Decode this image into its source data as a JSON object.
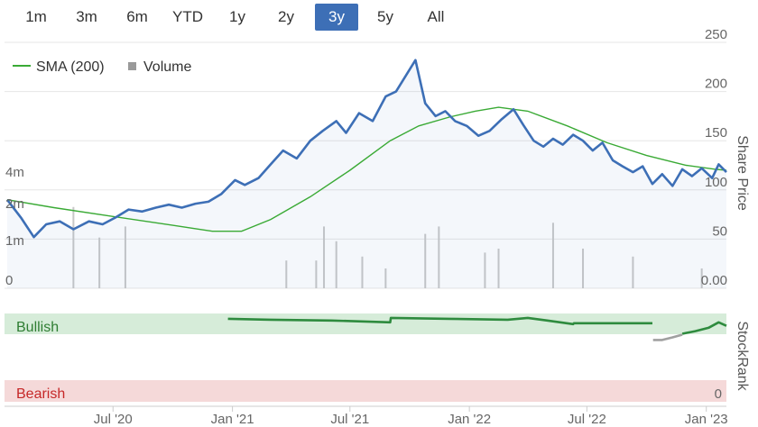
{
  "range_selector": {
    "buttons": [
      {
        "label": "1m"
      },
      {
        "label": "3m"
      },
      {
        "label": "6m"
      },
      {
        "label": "YTD"
      },
      {
        "label": "1y"
      },
      {
        "label": "2y"
      },
      {
        "label": "3y"
      },
      {
        "label": "5y"
      },
      {
        "label": "All"
      }
    ],
    "active_index": 6
  },
  "colors": {
    "price_line": "#3d6fb6",
    "sma_line": "#3aaa35",
    "volume_bar": "#c8c8c8",
    "bullish_band": "#d6ecd9",
    "bearish_band": "#f5d9d9",
    "stockrank_line": "#2e8b3e",
    "stockrank_gray": "#a0a0a0",
    "bullish_text": "#2e7d32",
    "bearish_text": "#c62828"
  },
  "chart_data": [
    {
      "type": "line",
      "x_ticks": [
        "Jul '20",
        "Jan '21",
        "Jul '21",
        "Jan '22",
        "Jul '22",
        "Jan '23"
      ],
      "y_right_ticks": [
        "250",
        "200",
        "150",
        "100",
        "50",
        "0.00"
      ],
      "y_right_label": "Share Price",
      "y_right_range": [
        0,
        250
      ],
      "y_left_ticks": [
        "4m",
        "2m",
        "1m",
        "0"
      ],
      "legend": [
        {
          "name": "SMA (200)",
          "marker": "line"
        },
        {
          "name": "Volume",
          "marker": "square"
        }
      ],
      "series": [
        {
          "name": "Price",
          "x": [
            "2020-01-20",
            "2020-02-10",
            "2020-03-01",
            "2020-03-20",
            "2020-04-10",
            "2020-05-01",
            "2020-05-25",
            "2020-06-15",
            "2020-07-05",
            "2020-07-25",
            "2020-08-15",
            "2020-09-05",
            "2020-09-25",
            "2020-10-15",
            "2020-11-05",
            "2020-11-25",
            "2020-12-15",
            "2021-01-05",
            "2021-01-20",
            "2021-02-10",
            "2021-03-01",
            "2021-03-20",
            "2021-04-10",
            "2021-05-01",
            "2021-05-20",
            "2021-06-10",
            "2021-06-25",
            "2021-07-15",
            "2021-08-05",
            "2021-08-25",
            "2021-09-10",
            "2021-09-25",
            "2021-10-10",
            "2021-10-25",
            "2021-11-10",
            "2021-11-25",
            "2021-12-10",
            "2021-12-28",
            "2022-01-15",
            "2022-02-01",
            "2022-02-20",
            "2022-03-10",
            "2022-03-25",
            "2022-04-10",
            "2022-04-25",
            "2022-05-10",
            "2022-05-25",
            "2022-06-10",
            "2022-06-25",
            "2022-07-10",
            "2022-07-25",
            "2022-08-10",
            "2022-08-25",
            "2022-09-10",
            "2022-09-25",
            "2022-10-10",
            "2022-10-25",
            "2022-11-10",
            "2022-11-25",
            "2022-12-10",
            "2022-12-25",
            "2023-01-10",
            "2023-01-20",
            "2023-02-01"
          ],
          "values": [
            90,
            72,
            52,
            65,
            68,
            60,
            68,
            65,
            72,
            80,
            78,
            82,
            85,
            82,
            86,
            88,
            96,
            110,
            105,
            112,
            126,
            140,
            132,
            150,
            160,
            170,
            158,
            178,
            170,
            195,
            200,
            216,
            232,
            188,
            175,
            180,
            170,
            165,
            155,
            160,
            172,
            182,
            166,
            150,
            144,
            152,
            146,
            156,
            150,
            140,
            148,
            130,
            124,
            118,
            124,
            106,
            116,
            104,
            121,
            114,
            122,
            112,
            126,
            118
          ]
        },
        {
          "name": "SMA (200)",
          "x": [
            "2020-01-20",
            "2020-04-01",
            "2020-07-01",
            "2020-10-01",
            "2020-12-01",
            "2021-01-15",
            "2021-03-01",
            "2021-05-01",
            "2021-07-01",
            "2021-09-01",
            "2021-10-15",
            "2021-12-01",
            "2022-01-10",
            "2022-02-15",
            "2022-04-01",
            "2022-06-01",
            "2022-08-01",
            "2022-10-01",
            "2022-12-01",
            "2023-01-15",
            "2023-02-01"
          ],
          "values": [
            90,
            82,
            73,
            64,
            58,
            58,
            70,
            93,
            120,
            150,
            165,
            174,
            180,
            184,
            180,
            165,
            148,
            135,
            125,
            121,
            120
          ]
        },
        {
          "name": "Volume",
          "x": [
            "2020-05-01",
            "2020-06-10",
            "2020-07-20",
            "2021-03-25",
            "2021-05-10",
            "2021-05-22",
            "2021-06-10",
            "2021-07-20",
            "2021-08-25",
            "2021-10-25",
            "2021-11-15",
            "2022-01-25",
            "2022-02-15",
            "2022-05-10",
            "2022-06-25",
            "2022-09-10",
            "2022-12-25"
          ],
          "values": [
            2.3,
            1.3,
            1.6,
            0.7,
            0.7,
            1.6,
            1.2,
            0.8,
            0.5,
            1.4,
            1.6,
            0.9,
            1.0,
            1.7,
            1.0,
            0.8,
            0.5
          ]
        }
      ]
    },
    {
      "type": "area",
      "y_right_label": "StockRank",
      "y_right_ticks": [
        "0"
      ],
      "band_labels": {
        "top": "Bullish",
        "bottom": "Bearish"
      },
      "y_range": [
        0,
        100
      ],
      "series": [
        {
          "name": "StockRank",
          "x": [
            "2020-12-25",
            "2021-03-01",
            "2021-06-01",
            "2021-06-02",
            "2021-09-01",
            "2021-09-02",
            "2021-12-01",
            "2022-03-01",
            "2022-04-01",
            "2022-05-01",
            "2022-06-10",
            "2022-06-11",
            "2022-10-10"
          ],
          "values": [
            94,
            93,
            92,
            92,
            90,
            95,
            94,
            93,
            95,
            92,
            88,
            89,
            89
          ]
        },
        {
          "name": "StockRank (low)",
          "x": [
            "2022-10-11",
            "2022-10-25",
            "2022-11-10",
            "2022-11-25"
          ],
          "values": [
            70,
            70,
            73,
            76
          ]
        },
        {
          "name": "StockRank (recovery)",
          "x": [
            "2022-11-25",
            "2022-12-15",
            "2023-01-05",
            "2023-01-20",
            "2023-02-01"
          ],
          "values": [
            77,
            80,
            84,
            90,
            86
          ]
        }
      ]
    }
  ]
}
